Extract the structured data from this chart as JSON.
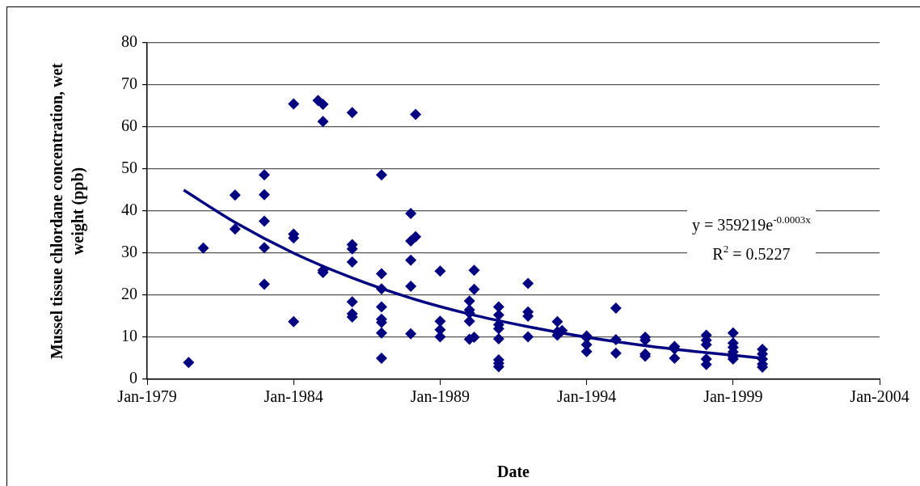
{
  "chart_data": {
    "type": "scatter",
    "xlabel": "Date",
    "ylabel": "Mussel tissue chlordane concentration, wet weight (ppb)",
    "xlim": [
      "1979-01",
      "2004-01"
    ],
    "xticks": [
      {
        "value": "1979-01",
        "label": "Jan-1979"
      },
      {
        "value": "1984-01",
        "label": "Jan-1984"
      },
      {
        "value": "1989-01",
        "label": "Jan-1989"
      },
      {
        "value": "1994-01",
        "label": "Jan-1994"
      },
      {
        "value": "1999-01",
        "label": "Jan-1999"
      },
      {
        "value": "2004-01",
        "label": "Jan-2004"
      }
    ],
    "ylim": [
      0,
      80
    ],
    "yticks": [
      0,
      10,
      20,
      30,
      40,
      50,
      60,
      70,
      80
    ],
    "grid": "y",
    "series": [
      {
        "marker": "diamond",
        "color": "#000080",
        "x": [
          "1980-06",
          "1980-12",
          "1982-01",
          "1982-01",
          "1983-01",
          "1983-01",
          "1983-01",
          "1983-01",
          "1983-01",
          "1984-01",
          "1984-01",
          "1984-01",
          "1984-01",
          "1984-11",
          "1985-01",
          "1985-01",
          "1985-01",
          "1985-01",
          "1986-01",
          "1986-01",
          "1986-01",
          "1986-01",
          "1986-01",
          "1986-01",
          "1986-01",
          "1987-01",
          "1987-01",
          "1987-01",
          "1987-01",
          "1987-01",
          "1987-01",
          "1987-01",
          "1987-01",
          "1988-01",
          "1988-01",
          "1988-01",
          "1988-01",
          "1988-01",
          "1988-03",
          "1988-03",
          "1989-01",
          "1989-01",
          "1989-01",
          "1989-01",
          "1990-01",
          "1990-01",
          "1990-01",
          "1990-01",
          "1990-01",
          "1990-03",
          "1990-03",
          "1990-03",
          "1991-01",
          "1991-01",
          "1991-01",
          "1991-01",
          "1991-01",
          "1991-01",
          "1991-01",
          "1991-01",
          "1992-01",
          "1992-01",
          "1992-01",
          "1992-01",
          "1993-01",
          "1993-01",
          "1993-01",
          "1993-03",
          "1994-01",
          "1994-01",
          "1994-01",
          "1994-01",
          "1995-01",
          "1995-01",
          "1995-01",
          "1996-01",
          "1996-01",
          "1996-01",
          "1996-01",
          "1997-01",
          "1997-01",
          "1997-01",
          "1998-02",
          "1998-02",
          "1998-02",
          "1998-02",
          "1998-02",
          "1999-01",
          "1999-01",
          "1999-01",
          "1999-01",
          "1999-01",
          "1999-01",
          "2000-01",
          "2000-01",
          "2000-01",
          "2000-01",
          "2000-01"
        ],
        "values": [
          4.0,
          31.2,
          43.8,
          35.7,
          48.6,
          43.9,
          37.6,
          31.3,
          22.6,
          65.5,
          34.5,
          33.6,
          13.7,
          66.3,
          65.4,
          61.3,
          25.9,
          25.4,
          63.4,
          32.0,
          31.0,
          27.9,
          18.4,
          15.6,
          14.8,
          48.6,
          25.1,
          21.5,
          17.2,
          14.3,
          13.5,
          11.0,
          5.0,
          39.4,
          32.9,
          28.3,
          22.1,
          10.8,
          63.0,
          33.9,
          25.7,
          13.8,
          11.8,
          10.1,
          18.6,
          16.5,
          13.8,
          9.5,
          15.7,
          25.9,
          21.4,
          10.0,
          17.2,
          15.3,
          13.0,
          12.0,
          9.6,
          4.6,
          3.8,
          3.0,
          22.8,
          16.0,
          15.0,
          10.1,
          13.7,
          11.3,
          10.5,
          11.6,
          10.3,
          9.9,
          8.2,
          6.6,
          16.9,
          9.4,
          6.2,
          10.0,
          9.3,
          6.0,
          5.5,
          7.8,
          7.2,
          5.0,
          10.5,
          9.3,
          8.2,
          4.8,
          3.5,
          11.0,
          8.6,
          7.6,
          6.5,
          5.4,
          4.8,
          7.1,
          6.0,
          4.8,
          3.6,
          2.9
        ]
      },
      {
        "type": "line",
        "marker": "none",
        "color": "#000080",
        "x": [
          "1980-04",
          "1982-01",
          "1984-01",
          "1986-01",
          "1988-01",
          "1990-01",
          "1992-01",
          "1994-01",
          "1996-01",
          "1998-01",
          "2000-01"
        ],
        "values": [
          45.0,
          37.3,
          30.0,
          24.1,
          19.3,
          15.5,
          12.5,
          10.0,
          8.0,
          6.4,
          5.0
        ]
      }
    ],
    "annotations": [
      "y = 359219e$^{-0.0003x}$",
      "R$^{2}$ = 0.5227"
    ]
  }
}
